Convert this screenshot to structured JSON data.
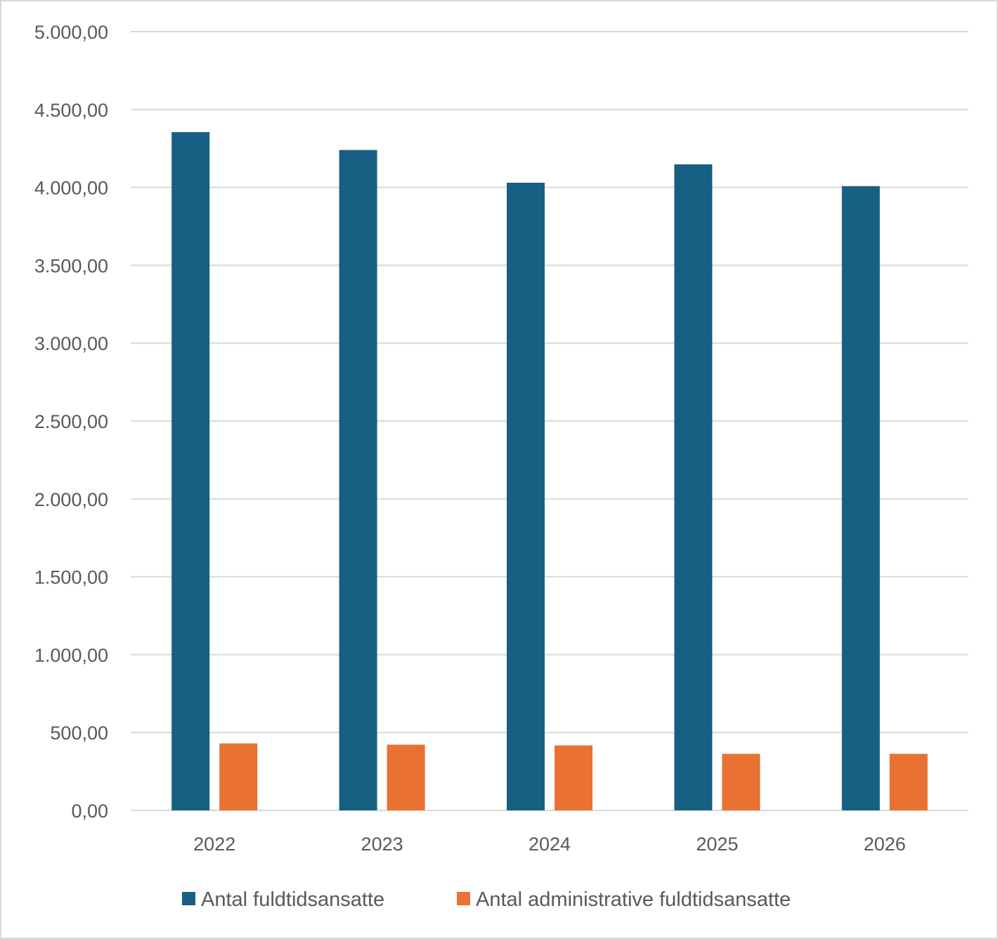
{
  "chart_data": {
    "type": "bar",
    "categories": [
      "2022",
      "2023",
      "2024",
      "2025",
      "2026"
    ],
    "series": [
      {
        "name": "Antal fuldtidsansatte",
        "color": "#176083",
        "values": [
          4355,
          4240,
          4030,
          4148,
          4008
        ]
      },
      {
        "name": "Antal administrative fuldtidsansatte",
        "color": "#E97132",
        "values": [
          430,
          422,
          417,
          363,
          363
        ]
      }
    ],
    "yticks": [
      "0,00",
      "500,00",
      "1.000,00",
      "1.500,00",
      "2.000,00",
      "2.500,00",
      "3.000,00",
      "3.500,00",
      "4.000,00",
      "4.500,00",
      "5.000,00"
    ],
    "ylim": [
      0,
      5000
    ],
    "ystep": 500,
    "grid": true,
    "legend_position": "bottom",
    "title": "",
    "xlabel": "",
    "ylabel": ""
  }
}
